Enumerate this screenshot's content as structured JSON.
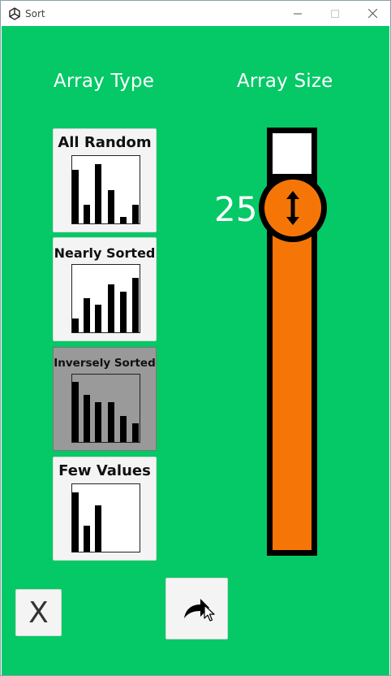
{
  "window": {
    "title": "Sort"
  },
  "headings": {
    "array_type": "Array Type",
    "array_size": "Array Size"
  },
  "array_types": [
    {
      "label": "All Random",
      "selected": false,
      "bars": [
        0.79,
        0.28,
        0.88,
        0.49,
        0.1,
        0.28
      ]
    },
    {
      "label": "Nearly Sorted",
      "selected": false,
      "bars": [
        0.21,
        0.5,
        0.41,
        0.71,
        0.6,
        0.81
      ]
    },
    {
      "label": "Inversely Sorted",
      "selected": true,
      "bars": [
        0.89,
        0.7,
        0.59,
        0.59,
        0.39,
        0.28
      ]
    },
    {
      "label": "Few Values",
      "selected": false,
      "bars": [
        0.88,
        0.39,
        0.69,
        0,
        0,
        0
      ]
    }
  ],
  "array_size": {
    "value": "25"
  },
  "buttons": {
    "close_label": "X"
  },
  "colors": {
    "background": "#04c966",
    "accent": "#f57606",
    "card": "#f4f4f4",
    "card_selected": "#999999"
  },
  "icons": {
    "window_icon": "unity-logo-icon",
    "knob_icon": "vertical-arrows-icon",
    "go_icon": "redo-arrow-icon",
    "cursor": "mouse-pointer-icon"
  }
}
